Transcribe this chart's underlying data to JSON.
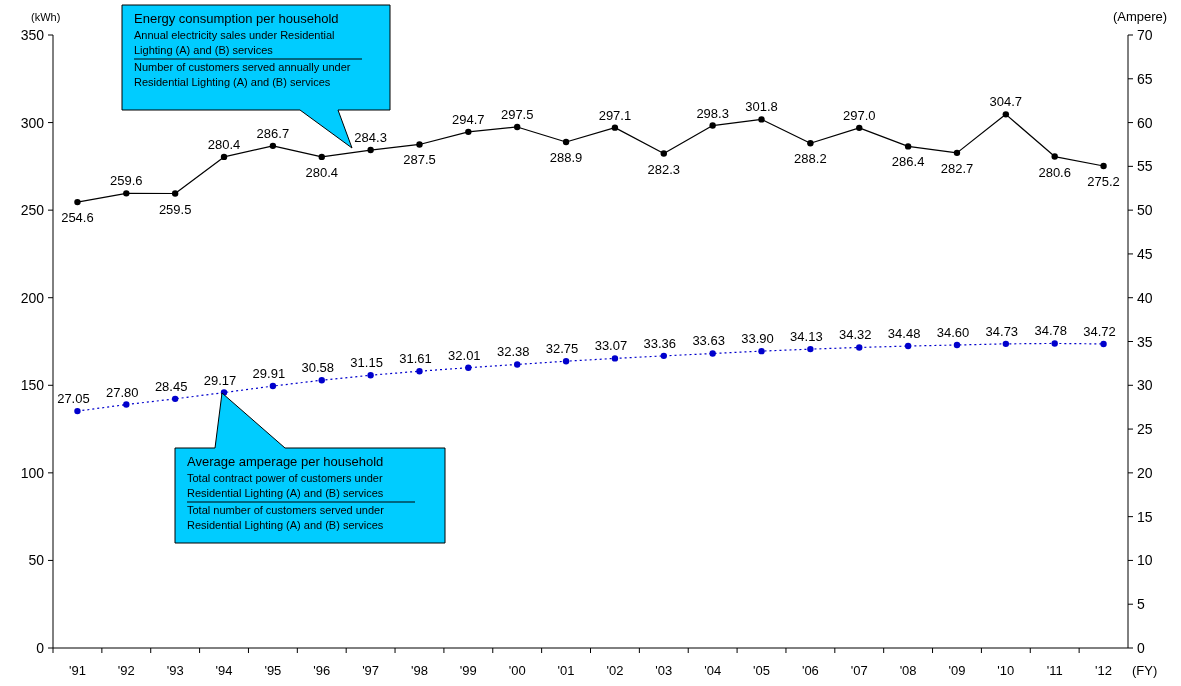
{
  "chart_data": {
    "type": "line",
    "categories": [
      "'91",
      "'92",
      "'93",
      "'94",
      "'95",
      "'96",
      "'97",
      "'98",
      "'99",
      "'00",
      "'01",
      "'02",
      "'03",
      "'04",
      "'05",
      "'06",
      "'07",
      "'08",
      "'09",
      "'10",
      "'11",
      "'12"
    ],
    "xlabel": "(FY)",
    "ylabel": "(kWh)",
    "y2label": "(Ampere)",
    "ylim": [
      0,
      350
    ],
    "yticks": [
      0,
      50,
      100,
      150,
      200,
      250,
      300,
      350
    ],
    "y2lim": [
      0,
      70
    ],
    "y2ticks": [
      0,
      5,
      10,
      15,
      20,
      25,
      30,
      35,
      40,
      45,
      50,
      55,
      60,
      65,
      70
    ],
    "marker": "circle",
    "grid": false,
    "series": [
      {
        "color": "#000000",
        "line_style": "solid",
        "values": [
          254.6,
          259.6,
          259.5,
          280.4,
          286.7,
          280.4,
          284.3,
          287.5,
          294.7,
          297.5,
          288.9,
          297.1,
          282.3,
          298.3,
          301.8,
          288.2,
          297.0,
          286.4,
          282.7,
          304.7,
          280.6,
          275.2
        ],
        "value_labels": [
          "254.6",
          "259.6",
          "259.5",
          "280.4",
          "286.7",
          "280.4",
          "284.3",
          "287.5",
          "294.7",
          "297.5",
          "288.9",
          "297.1",
          "282.3",
          "298.3",
          "301.8",
          "288.2",
          "297.0",
          "286.4",
          "282.7",
          "304.7",
          "280.6",
          "275.2"
        ]
      },
      {
        "color": "#0000cc",
        "line_style": "dotted",
        "axis": "y2",
        "values": [
          27.05,
          27.8,
          28.45,
          29.17,
          29.91,
          30.58,
          31.15,
          31.61,
          32.01,
          32.38,
          32.75,
          33.07,
          33.36,
          33.63,
          33.9,
          34.13,
          34.32,
          34.48,
          34.6,
          34.73,
          34.78,
          34.72
        ],
        "value_labels": [
          "27.05",
          "27.80",
          "28.45",
          "29.17",
          "29.91",
          "30.58",
          "31.15",
          "31.61",
          "32.01",
          "32.38",
          "32.75",
          "33.07",
          "33.36",
          "33.63",
          "33.90",
          "34.13",
          "34.32",
          "34.48",
          "34.60",
          "34.73",
          "34.78",
          "34.72"
        ]
      }
    ],
    "annotations": [
      "Energy consumption per household",
      "Annual electricity sales under Residential Lighting (A) and (B) services",
      "Number of customers served annually under Residential Lighting (A) and (B) services",
      "Average amperage per household",
      "Total contract power of customers under Residential Lighting (A) and (B) services",
      "Total number of customers served under Residential Lighting (A) and (B) services"
    ]
  }
}
